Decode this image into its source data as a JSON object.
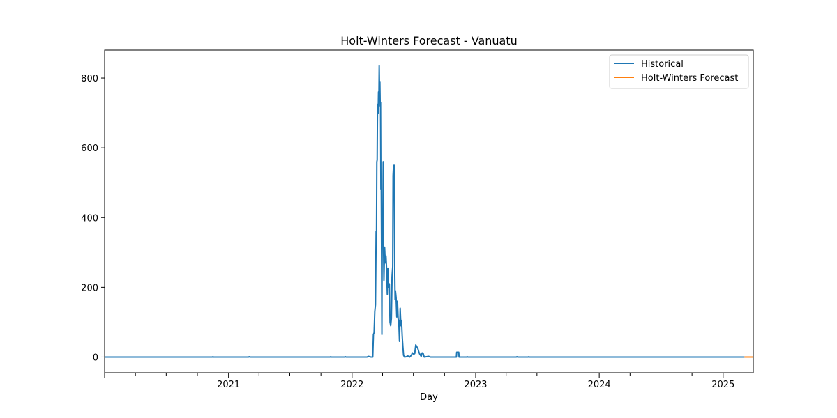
{
  "chart_data": {
    "type": "line",
    "title": "Holt-Winters Forecast - Vanuatu",
    "xlabel": "Day",
    "ylabel": "",
    "x_range": [
      "2020-01-01",
      "2025-03-31"
    ],
    "ylim": [
      -45,
      880
    ],
    "x_ticks": [
      {
        "date": "2021-01-01",
        "label": "2021"
      },
      {
        "date": "2022-01-01",
        "label": "2022"
      },
      {
        "date": "2023-01-01",
        "label": "2023"
      },
      {
        "date": "2024-01-01",
        "label": "2024"
      },
      {
        "date": "2025-01-01",
        "label": "2025"
      }
    ],
    "y_ticks": [
      0,
      200,
      400,
      600,
      800
    ],
    "legend_position": "top-right",
    "grid": false,
    "series": [
      {
        "name": "Historical",
        "color": "#1f77b4",
        "points": [
          [
            "2020-01-01",
            0
          ],
          [
            "2020-11-14",
            0
          ],
          [
            "2020-11-16",
            1
          ],
          [
            "2020-11-18",
            0
          ],
          [
            "2021-03-01",
            0
          ],
          [
            "2021-03-03",
            1
          ],
          [
            "2021-03-05",
            0
          ],
          [
            "2021-10-28",
            0
          ],
          [
            "2021-10-30",
            1
          ],
          [
            "2021-11-01",
            0
          ],
          [
            "2021-12-10",
            0
          ],
          [
            "2021-12-12",
            1
          ],
          [
            "2021-12-14",
            0
          ],
          [
            "2022-02-14",
            0
          ],
          [
            "2022-02-18",
            2
          ],
          [
            "2022-02-22",
            1
          ],
          [
            "2022-02-26",
            0
          ],
          [
            "2022-03-03",
            0
          ],
          [
            "2022-03-05",
            65
          ],
          [
            "2022-03-07",
            70
          ],
          [
            "2022-03-09",
            130
          ],
          [
            "2022-03-11",
            150
          ],
          [
            "2022-03-13",
            360
          ],
          [
            "2022-03-14",
            340
          ],
          [
            "2022-03-15",
            560
          ],
          [
            "2022-03-16",
            565
          ],
          [
            "2022-03-17",
            720
          ],
          [
            "2022-03-18",
            725
          ],
          [
            "2022-03-19",
            700
          ],
          [
            "2022-03-20",
            760
          ],
          [
            "2022-03-21",
            730
          ],
          [
            "2022-03-22",
            835
          ],
          [
            "2022-03-23",
            760
          ],
          [
            "2022-03-24",
            790
          ],
          [
            "2022-03-25",
            720
          ],
          [
            "2022-03-26",
            730
          ],
          [
            "2022-03-27",
            480
          ],
          [
            "2022-03-28",
            500
          ],
          [
            "2022-03-29",
            300
          ],
          [
            "2022-03-30",
            65
          ],
          [
            "2022-03-31",
            400
          ],
          [
            "2022-04-01",
            410
          ],
          [
            "2022-04-02",
            420
          ],
          [
            "2022-04-03",
            560
          ],
          [
            "2022-04-04",
            300
          ],
          [
            "2022-04-05",
            220
          ],
          [
            "2022-04-07",
            315
          ],
          [
            "2022-04-09",
            270
          ],
          [
            "2022-04-11",
            290
          ],
          [
            "2022-04-13",
            250
          ],
          [
            "2022-04-15",
            180
          ],
          [
            "2022-04-17",
            255
          ],
          [
            "2022-04-19",
            200
          ],
          [
            "2022-04-21",
            210
          ],
          [
            "2022-04-23",
            100
          ],
          [
            "2022-04-25",
            90
          ],
          [
            "2022-04-27",
            110
          ],
          [
            "2022-04-29",
            230
          ],
          [
            "2022-05-01",
            260
          ],
          [
            "2022-05-02",
            520
          ],
          [
            "2022-05-03",
            540
          ],
          [
            "2022-05-04",
            500
          ],
          [
            "2022-05-05",
            550
          ],
          [
            "2022-05-06",
            430
          ],
          [
            "2022-05-07",
            240
          ],
          [
            "2022-05-08",
            165
          ],
          [
            "2022-05-09",
            190
          ],
          [
            "2022-05-11",
            170
          ],
          [
            "2022-05-13",
            115
          ],
          [
            "2022-05-15",
            160
          ],
          [
            "2022-05-17",
            110
          ],
          [
            "2022-05-19",
            100
          ],
          [
            "2022-05-21",
            45
          ],
          [
            "2022-05-23",
            140
          ],
          [
            "2022-05-25",
            90
          ],
          [
            "2022-05-27",
            105
          ],
          [
            "2022-05-29",
            60
          ],
          [
            "2022-05-31",
            30
          ],
          [
            "2022-06-02",
            5
          ],
          [
            "2022-06-05",
            0
          ],
          [
            "2022-06-10",
            1
          ],
          [
            "2022-06-15",
            3
          ],
          [
            "2022-06-20",
            0
          ],
          [
            "2022-06-25",
            5
          ],
          [
            "2022-06-28",
            12
          ],
          [
            "2022-07-02",
            8
          ],
          [
            "2022-07-05",
            10
          ],
          [
            "2022-07-08",
            35
          ],
          [
            "2022-07-11",
            30
          ],
          [
            "2022-07-14",
            25
          ],
          [
            "2022-07-17",
            15
          ],
          [
            "2022-07-20",
            8
          ],
          [
            "2022-07-24",
            2
          ],
          [
            "2022-07-27",
            12
          ],
          [
            "2022-07-30",
            10
          ],
          [
            "2022-08-02",
            0
          ],
          [
            "2022-08-15",
            2
          ],
          [
            "2022-08-20",
            0
          ],
          [
            "2022-11-05",
            0
          ],
          [
            "2022-11-06",
            14
          ],
          [
            "2022-11-12",
            14
          ],
          [
            "2022-11-13",
            0
          ],
          [
            "2022-12-05",
            0
          ],
          [
            "2022-12-07",
            1
          ],
          [
            "2022-12-09",
            0
          ],
          [
            "2023-05-01",
            0
          ],
          [
            "2023-05-03",
            1
          ],
          [
            "2023-05-05",
            0
          ],
          [
            "2023-06-05",
            0
          ],
          [
            "2023-06-07",
            1
          ],
          [
            "2023-06-09",
            0
          ],
          [
            "2025-03-05",
            0
          ]
        ]
      },
      {
        "name": "Holt-Winters Forecast",
        "color": "#ff7f0e",
        "points": [
          [
            "2025-03-05",
            0
          ],
          [
            "2025-03-31",
            0
          ]
        ]
      }
    ]
  }
}
